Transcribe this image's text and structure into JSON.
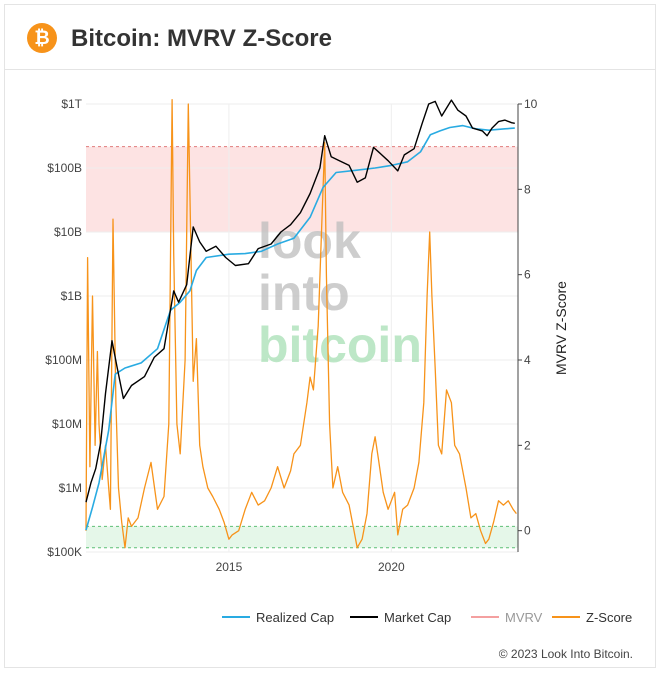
{
  "header": {
    "logo_glyph": "₿",
    "logo_icon": "bitcoin-icon",
    "title": "Bitcoin: MVRV Z-Score"
  },
  "footer": {
    "copyright": "© 2023 Look Into Bitcoin."
  },
  "watermark": [
    "look",
    "into",
    "bitcoin"
  ],
  "colors": {
    "realized": "#29abe2",
    "market": "#000000",
    "mvrv": "#f4a0a0",
    "zscore": "#f7931a",
    "high_band": "#fde3e3",
    "low_band": "#e5f7e9",
    "bitcoin": "#f7931a"
  },
  "chart_data": {
    "type": "line",
    "title": "Bitcoin: MVRV Z-Score",
    "x_range": [
      2010.6,
      2023.9
    ],
    "x_ticks": [
      {
        "value": 2015,
        "label": "2015"
      },
      {
        "value": 2020,
        "label": "2020"
      }
    ],
    "y_left": {
      "scale": "log",
      "range": [
        100000,
        1000000000000
      ],
      "ticks": [
        {
          "value": 100000,
          "label": "$100K"
        },
        {
          "value": 1000000,
          "label": "$1M"
        },
        {
          "value": 10000000,
          "label": "$10M"
        },
        {
          "value": 100000000,
          "label": "$100M"
        },
        {
          "value": 1000000000,
          "label": "$1B"
        },
        {
          "value": 10000000000,
          "label": "$10B"
        },
        {
          "value": 100000000000,
          "label": "$100B"
        },
        {
          "value": 1000000000000,
          "label": "$1T"
        }
      ]
    },
    "y_right": {
      "label": "MVRV Z-Score",
      "range": [
        -0.5,
        10
      ],
      "ticks": [
        0,
        2,
        4,
        6,
        8,
        10
      ]
    },
    "bands": [
      {
        "name": "overvalued",
        "from": 7,
        "to": 9
      },
      {
        "name": "undervalued",
        "from": -0.4,
        "to": 0.1
      }
    ],
    "series": [
      {
        "name": "Realized Cap",
        "axis": "left",
        "points": [
          [
            2010.6,
            220000
          ],
          [
            2010.8,
            500000
          ],
          [
            2011.0,
            1200000
          ],
          [
            2011.3,
            8000000
          ],
          [
            2011.5,
            60000000
          ],
          [
            2011.8,
            75000000
          ],
          [
            2012.3,
            90000000
          ],
          [
            2012.8,
            150000000
          ],
          [
            2013.2,
            600000000
          ],
          [
            2013.5,
            800000000
          ],
          [
            2013.8,
            1200000000
          ],
          [
            2014.0,
            2500000000
          ],
          [
            2014.3,
            4000000000
          ],
          [
            2015.0,
            4500000000
          ],
          [
            2015.5,
            4600000000
          ],
          [
            2016.0,
            5000000000
          ],
          [
            2016.5,
            6500000000
          ],
          [
            2017.0,
            8000000000
          ],
          [
            2017.5,
            17000000000
          ],
          [
            2017.9,
            50000000000
          ],
          [
            2018.3,
            85000000000
          ],
          [
            2018.9,
            92000000000
          ],
          [
            2019.5,
            100000000000
          ],
          [
            2020.0,
            110000000000
          ],
          [
            2020.5,
            125000000000
          ],
          [
            2020.9,
            180000000000
          ],
          [
            2021.2,
            330000000000
          ],
          [
            2021.5,
            380000000000
          ],
          [
            2021.8,
            430000000000
          ],
          [
            2022.2,
            460000000000
          ],
          [
            2022.6,
            410000000000
          ],
          [
            2023.0,
            390000000000
          ],
          [
            2023.5,
            410000000000
          ],
          [
            2023.8,
            420000000000
          ]
        ]
      },
      {
        "name": "Market Cap",
        "axis": "left",
        "points": [
          [
            2010.6,
            600000
          ],
          [
            2010.75,
            1200000
          ],
          [
            2010.9,
            2000000
          ],
          [
            2011.05,
            5000000
          ],
          [
            2011.2,
            30000000
          ],
          [
            2011.4,
            200000000
          ],
          [
            2011.55,
            80000000
          ],
          [
            2011.75,
            25000000
          ],
          [
            2012.0,
            40000000
          ],
          [
            2012.4,
            55000000
          ],
          [
            2012.7,
            110000000
          ],
          [
            2013.0,
            150000000
          ],
          [
            2013.3,
            1200000000
          ],
          [
            2013.45,
            800000000
          ],
          [
            2013.7,
            1500000000
          ],
          [
            2013.9,
            12000000000
          ],
          [
            2014.1,
            7000000000
          ],
          [
            2014.3,
            5000000000
          ],
          [
            2014.6,
            6000000000
          ],
          [
            2014.9,
            4000000000
          ],
          [
            2015.2,
            3000000000
          ],
          [
            2015.6,
            3200000000
          ],
          [
            2015.9,
            5500000000
          ],
          [
            2016.3,
            6500000000
          ],
          [
            2016.6,
            10000000000
          ],
          [
            2016.9,
            13000000000
          ],
          [
            2017.2,
            20000000000
          ],
          [
            2017.5,
            40000000000
          ],
          [
            2017.8,
            100000000000
          ],
          [
            2017.95,
            320000000000
          ],
          [
            2018.15,
            150000000000
          ],
          [
            2018.4,
            130000000000
          ],
          [
            2018.7,
            110000000000
          ],
          [
            2018.95,
            60000000000
          ],
          [
            2019.2,
            70000000000
          ],
          [
            2019.45,
            210000000000
          ],
          [
            2019.6,
            180000000000
          ],
          [
            2019.9,
            130000000000
          ],
          [
            2020.2,
            90000000000
          ],
          [
            2020.4,
            160000000000
          ],
          [
            2020.7,
            200000000000
          ],
          [
            2020.95,
            500000000000
          ],
          [
            2021.15,
            1000000000000
          ],
          [
            2021.35,
            1100000000000
          ],
          [
            2021.55,
            650000000000
          ],
          [
            2021.85,
            1150000000000
          ],
          [
            2022.05,
            800000000000
          ],
          [
            2022.3,
            650000000000
          ],
          [
            2022.5,
            420000000000
          ],
          [
            2022.8,
            380000000000
          ],
          [
            2022.95,
            320000000000
          ],
          [
            2023.1,
            420000000000
          ],
          [
            2023.3,
            530000000000
          ],
          [
            2023.5,
            560000000000
          ],
          [
            2023.7,
            510000000000
          ],
          [
            2023.8,
            500000000000
          ]
        ]
      },
      {
        "name": "MVRV",
        "axis": "right",
        "points": []
      },
      {
        "name": "Z-Score",
        "axis": "right",
        "points": [
          [
            2010.6,
            0.0
          ],
          [
            2010.65,
            6.4
          ],
          [
            2010.72,
            1.5
          ],
          [
            2010.8,
            5.5
          ],
          [
            2010.88,
            2.0
          ],
          [
            2010.95,
            4.2
          ],
          [
            2011.0,
            2.5
          ],
          [
            2011.1,
            1.2
          ],
          [
            2011.2,
            2.0
          ],
          [
            2011.3,
            1.0
          ],
          [
            2011.35,
            0.5
          ],
          [
            2011.43,
            7.3
          ],
          [
            2011.52,
            3.0
          ],
          [
            2011.6,
            1.0
          ],
          [
            2011.7,
            0.2
          ],
          [
            2011.8,
            -0.4
          ],
          [
            2011.9,
            0.3
          ],
          [
            2012.0,
            0.1
          ],
          [
            2012.2,
            0.3
          ],
          [
            2012.4,
            1.0
          ],
          [
            2012.6,
            1.6
          ],
          [
            2012.8,
            0.5
          ],
          [
            2013.0,
            0.8
          ],
          [
            2013.15,
            2.5
          ],
          [
            2013.25,
            10.1
          ],
          [
            2013.3,
            6.5
          ],
          [
            2013.4,
            2.5
          ],
          [
            2013.5,
            1.8
          ],
          [
            2013.65,
            4.0
          ],
          [
            2013.75,
            10.0
          ],
          [
            2013.82,
            7.0
          ],
          [
            2013.9,
            3.5
          ],
          [
            2014.0,
            4.5
          ],
          [
            2014.1,
            2.0
          ],
          [
            2014.2,
            1.5
          ],
          [
            2014.35,
            1.0
          ],
          [
            2014.5,
            0.8
          ],
          [
            2014.7,
            0.5
          ],
          [
            2014.85,
            0.2
          ],
          [
            2015.0,
            -0.2
          ],
          [
            2015.1,
            -0.1
          ],
          [
            2015.3,
            0.0
          ],
          [
            2015.5,
            0.5
          ],
          [
            2015.7,
            0.9
          ],
          [
            2015.9,
            0.6
          ],
          [
            2016.1,
            0.7
          ],
          [
            2016.3,
            1.0
          ],
          [
            2016.5,
            1.5
          ],
          [
            2016.7,
            1.0
          ],
          [
            2016.9,
            1.4
          ],
          [
            2017.0,
            1.8
          ],
          [
            2017.2,
            2.0
          ],
          [
            2017.4,
            3.0
          ],
          [
            2017.5,
            3.6
          ],
          [
            2017.6,
            3.3
          ],
          [
            2017.75,
            4.8
          ],
          [
            2017.85,
            7.0
          ],
          [
            2017.95,
            9.1
          ],
          [
            2018.0,
            6.0
          ],
          [
            2018.1,
            2.5
          ],
          [
            2018.2,
            1.0
          ],
          [
            2018.35,
            1.5
          ],
          [
            2018.5,
            0.9
          ],
          [
            2018.7,
            0.6
          ],
          [
            2018.85,
            0.0
          ],
          [
            2018.95,
            -0.4
          ],
          [
            2019.1,
            -0.2
          ],
          [
            2019.25,
            0.4
          ],
          [
            2019.4,
            1.8
          ],
          [
            2019.5,
            2.2
          ],
          [
            2019.6,
            1.7
          ],
          [
            2019.75,
            0.9
          ],
          [
            2019.9,
            0.5
          ],
          [
            2020.1,
            0.9
          ],
          [
            2020.2,
            -0.1
          ],
          [
            2020.35,
            0.5
          ],
          [
            2020.5,
            0.6
          ],
          [
            2020.7,
            1.0
          ],
          [
            2020.85,
            1.6
          ],
          [
            2021.0,
            3.0
          ],
          [
            2021.1,
            5.5
          ],
          [
            2021.18,
            7.0
          ],
          [
            2021.25,
            5.5
          ],
          [
            2021.35,
            3.8
          ],
          [
            2021.45,
            2.0
          ],
          [
            2021.55,
            1.8
          ],
          [
            2021.7,
            3.3
          ],
          [
            2021.85,
            3.0
          ],
          [
            2021.95,
            2.0
          ],
          [
            2022.1,
            1.8
          ],
          [
            2022.3,
            1.0
          ],
          [
            2022.45,
            0.3
          ],
          [
            2022.6,
            0.4
          ],
          [
            2022.75,
            0.0
          ],
          [
            2022.9,
            -0.3
          ],
          [
            2023.0,
            -0.2
          ],
          [
            2023.15,
            0.2
          ],
          [
            2023.3,
            0.7
          ],
          [
            2023.45,
            0.6
          ],
          [
            2023.6,
            0.7
          ],
          [
            2023.75,
            0.5
          ],
          [
            2023.85,
            0.4
          ]
        ]
      }
    ],
    "legend": {
      "placement": "bottom-right",
      "entries": [
        "Realized Cap",
        "Market Cap",
        "MVRV",
        "Z-Score"
      ]
    }
  }
}
